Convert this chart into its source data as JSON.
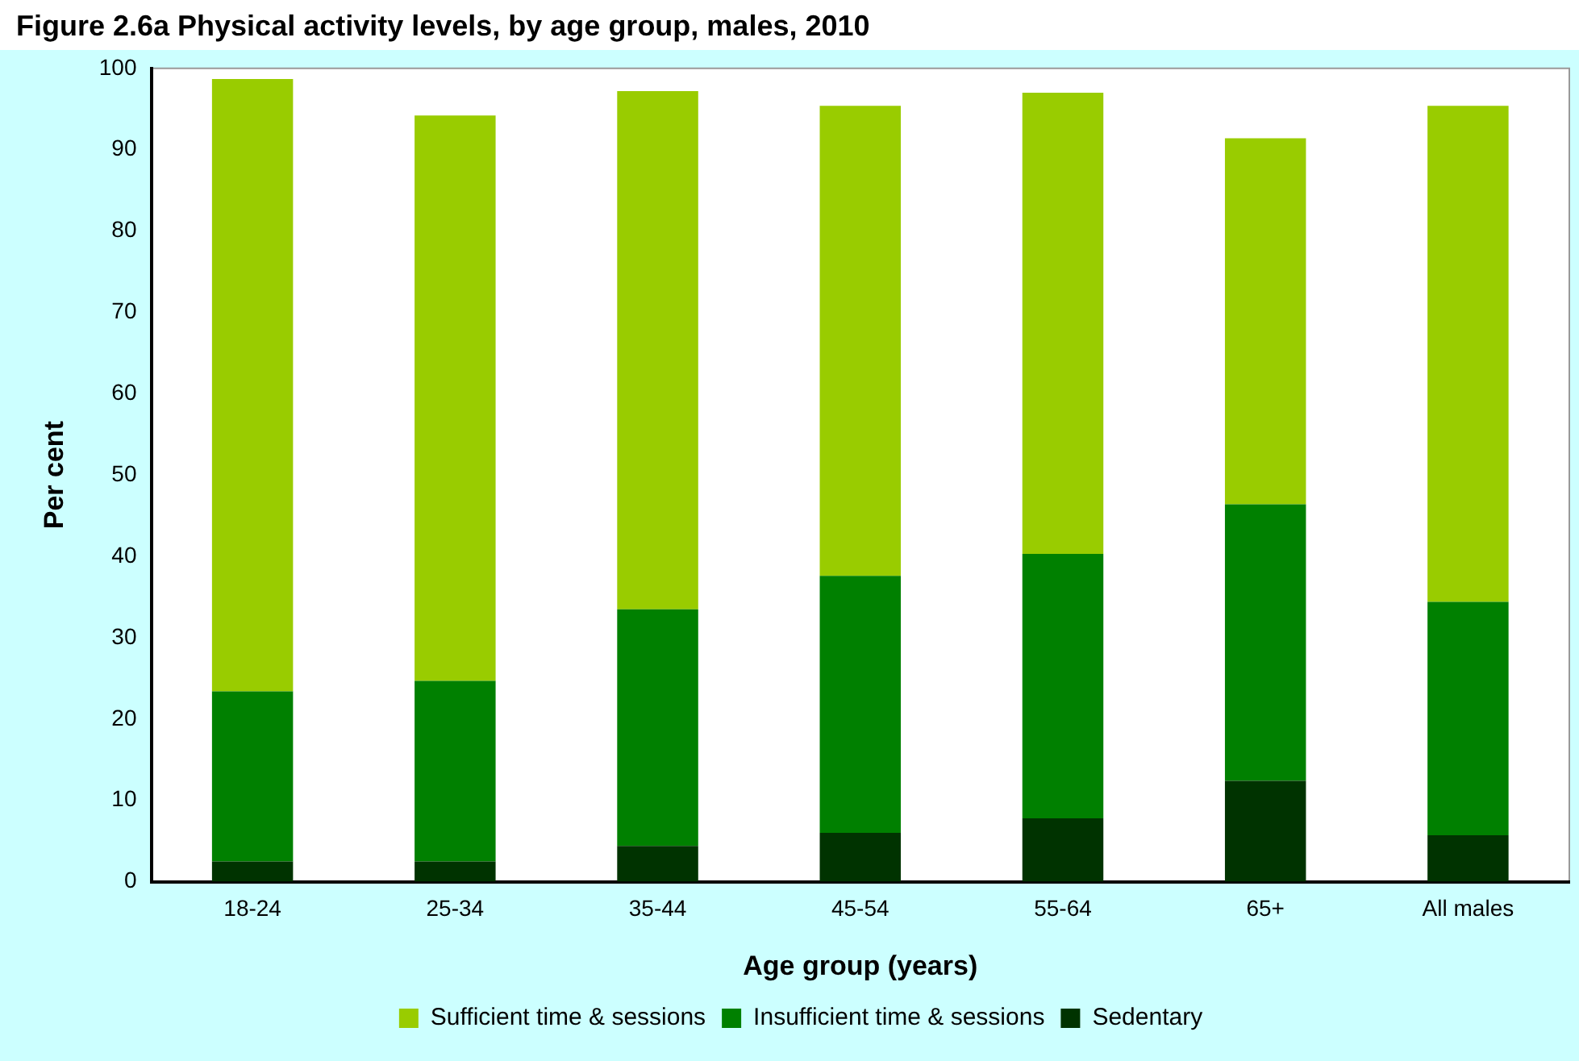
{
  "chart_data": {
    "type": "bar",
    "title": "Figure 2.6a Physical activity levels, by age group, males, 2010",
    "xlabel": "Age group (years)",
    "ylabel": "Per cent",
    "categories": [
      "18-24",
      "25-34",
      "35-44",
      "45-54",
      "55-64",
      "65+",
      "All males"
    ],
    "stacked": true,
    "ylim": [
      0,
      100
    ],
    "yticks": [
      0,
      10,
      20,
      30,
      40,
      50,
      60,
      70,
      80,
      90,
      100
    ],
    "grid": false,
    "legend": "bottom",
    "series": [
      {
        "name": "Sedentary",
        "color": "#003300",
        "values": [
          2.5,
          2.5,
          4.4,
          6.0,
          7.8,
          12.4,
          5.7
        ]
      },
      {
        "name": "Insufficient time & sessions",
        "color": "#008000",
        "values": [
          20.9,
          22.2,
          29.1,
          31.6,
          32.5,
          34.0,
          28.7
        ]
      },
      {
        "name": "Sufficient time & sessions",
        "color": "#99cc00",
        "values": [
          75.3,
          69.5,
          63.7,
          57.8,
          56.7,
          45.0,
          61.0
        ]
      }
    ]
  }
}
